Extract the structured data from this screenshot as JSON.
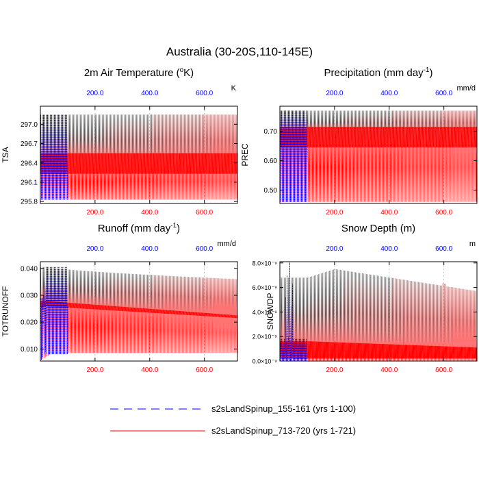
{
  "main_title": "Australia (30-20S,110-145E)",
  "colors": {
    "control": "#0000ff",
    "experiment": "#ff0000",
    "axis": "#000000",
    "grid": "#999999"
  },
  "legend": {
    "entries": [
      {
        "label": "s2sLandSpinup_155-161 (yrs 1-100)",
        "color": "#0000ff",
        "dash": true
      },
      {
        "label": "s2sLandSpinup_713-720 (yrs 1-721)",
        "color": "#ff0000",
        "dash": false
      }
    ]
  },
  "chart_data": [
    {
      "id": "tsa",
      "type": "line",
      "title": "2m Air Temperature (°K)",
      "title_main": "2m Air Temperature (",
      "title_sup": "o",
      "title_rest": "K)",
      "ylabel": "TSA",
      "units": "K",
      "xlim": [
        0,
        721
      ],
      "ylim": [
        295.77,
        297.28
      ],
      "yticks": [
        295.8,
        296.1,
        296.4,
        296.7,
        297.0
      ],
      "ytick_labels": [
        "295.8",
        "296.1",
        "296.4",
        "296.7",
        "297.0"
      ],
      "top_xticks": [
        200,
        400,
        600
      ],
      "top_xtick_labels": [
        "200.0",
        "400.0",
        "600.0"
      ],
      "bottom_xticks": [
        200,
        400,
        600
      ],
      "bottom_xtick_labels": [
        "200.0",
        "400.0",
        "600.0"
      ],
      "grid": true,
      "series": [
        {
          "name": "s2sLandSpinup_155-161 (yrs 1-100)",
          "x_range": [
            1,
            100
          ],
          "envelope_min": 295.83,
          "envelope_max": 297.15,
          "mid_band": [
            296.23,
            296.55
          ]
        },
        {
          "name": "s2sLandSpinup_713-720 (yrs 1-721)",
          "x_range": [
            1,
            721
          ],
          "envelope_min": 295.83,
          "envelope_max": 297.15,
          "mid_band": [
            296.23,
            296.55
          ]
        }
      ]
    },
    {
      "id": "prec",
      "type": "line",
      "title": "Precipitation (mm day-1)",
      "title_main": "Precipitation (mm day",
      "title_sup": "-1",
      "title_rest": ")",
      "ylabel": "PREC",
      "units": "mm/d",
      "xlim": [
        0,
        721
      ],
      "ylim": [
        0.455,
        0.785
      ],
      "yticks": [
        0.5,
        0.6,
        0.7
      ],
      "ytick_labels": [
        "0.50",
        "0.60",
        "0.70"
      ],
      "top_xticks": [
        200,
        400,
        600
      ],
      "top_xtick_labels": [
        "200.0",
        "400.0",
        "600.0"
      ],
      "bottom_xticks": [
        200,
        400,
        600
      ],
      "bottom_xtick_labels": [
        "200.0",
        "400.0",
        "600.0"
      ],
      "grid": true,
      "series": [
        {
          "name": "s2sLandSpinup_155-161 (yrs 1-100)",
          "x_range": [
            1,
            100
          ],
          "envelope_min": 0.46,
          "envelope_max": 0.77,
          "mid_band": [
            0.645,
            0.715
          ]
        },
        {
          "name": "s2sLandSpinup_713-720 (yrs 1-721)",
          "x_range": [
            1,
            721
          ],
          "envelope_min": 0.46,
          "envelope_max": 0.77,
          "mid_band": [
            0.645,
            0.715
          ]
        }
      ]
    },
    {
      "id": "runoff",
      "type": "line",
      "title": "Runoff (mm day-1)",
      "title_main": "Runoff (mm day",
      "title_sup": "-1",
      "title_rest": ")",
      "ylabel": "TOTRUNOFF",
      "units": "mm/d",
      "xlim": [
        0,
        721
      ],
      "ylim": [
        0.0055,
        0.0425
      ],
      "yticks": [
        0.01,
        0.02,
        0.03,
        0.04
      ],
      "ytick_labels": [
        "0.010",
        "0.020",
        "0.030",
        "0.040"
      ],
      "top_xticks": [
        200,
        400,
        600
      ],
      "top_xtick_labels": [
        "200.0",
        "400.0",
        "600.0"
      ],
      "bottom_xticks": [
        200,
        400,
        600
      ],
      "bottom_xtick_labels": [
        "200.0",
        "400.0",
        "600.0"
      ],
      "grid": true,
      "series": [
        {
          "name": "s2sLandSpinup_155-161 (yrs 1-100)",
          "x_range": [
            1,
            100
          ],
          "envelope_min": 0.008,
          "envelope_max": 0.0405,
          "mid_band": [
            0.026,
            0.029
          ]
        },
        {
          "name": "s2sLandSpinup_713-720 (yrs 1-721)",
          "x_range": [
            1,
            721
          ],
          "envelope_min": 0.0085,
          "envelope_max": 0.0405,
          "envelope_max_end": 0.036,
          "mid_band": [
            0.026,
            0.028
          ],
          "mid_band_end": [
            0.0215,
            0.0225
          ]
        }
      ]
    },
    {
      "id": "snowdp",
      "type": "line",
      "title": "Snow Depth (m)",
      "ylabel": "SNOWDP",
      "units": "m",
      "xlim": [
        0,
        721
      ],
      "ylim": [
        0,
        8.1e-09
      ],
      "yticks": [
        0,
        2e-09,
        4e-09,
        6e-09,
        8e-09
      ],
      "ytick_labels": [
        "0.0×10⁻⁹",
        "2.0×10⁻⁹",
        "4.0×10⁻⁹",
        "6.0×10⁻⁹",
        "8.0×10⁻⁹"
      ],
      "top_xticks": [
        200,
        400,
        600
      ],
      "top_xtick_labels": [
        "200.0",
        "400.0",
        "600.0"
      ],
      "bottom_xticks": [
        200,
        400,
        600
      ],
      "bottom_xtick_labels": [
        "200.0",
        "400.0",
        "600.0"
      ],
      "grid": true,
      "series": [
        {
          "name": "s2sLandSpinup_155-161 (yrs 1-100)",
          "x_range": [
            1,
            100
          ],
          "envelope_min": 0.0,
          "envelope_max": 8.1e-09
        },
        {
          "name": "s2sLandSpinup_713-720 (yrs 1-721)",
          "x_range": [
            1,
            721
          ],
          "envelope_min": 0.0,
          "envelope_max_start": 6.8e-09,
          "envelope_max_peak": 7.5e-09,
          "envelope_max_end": 5.7e-09
        }
      ]
    }
  ]
}
